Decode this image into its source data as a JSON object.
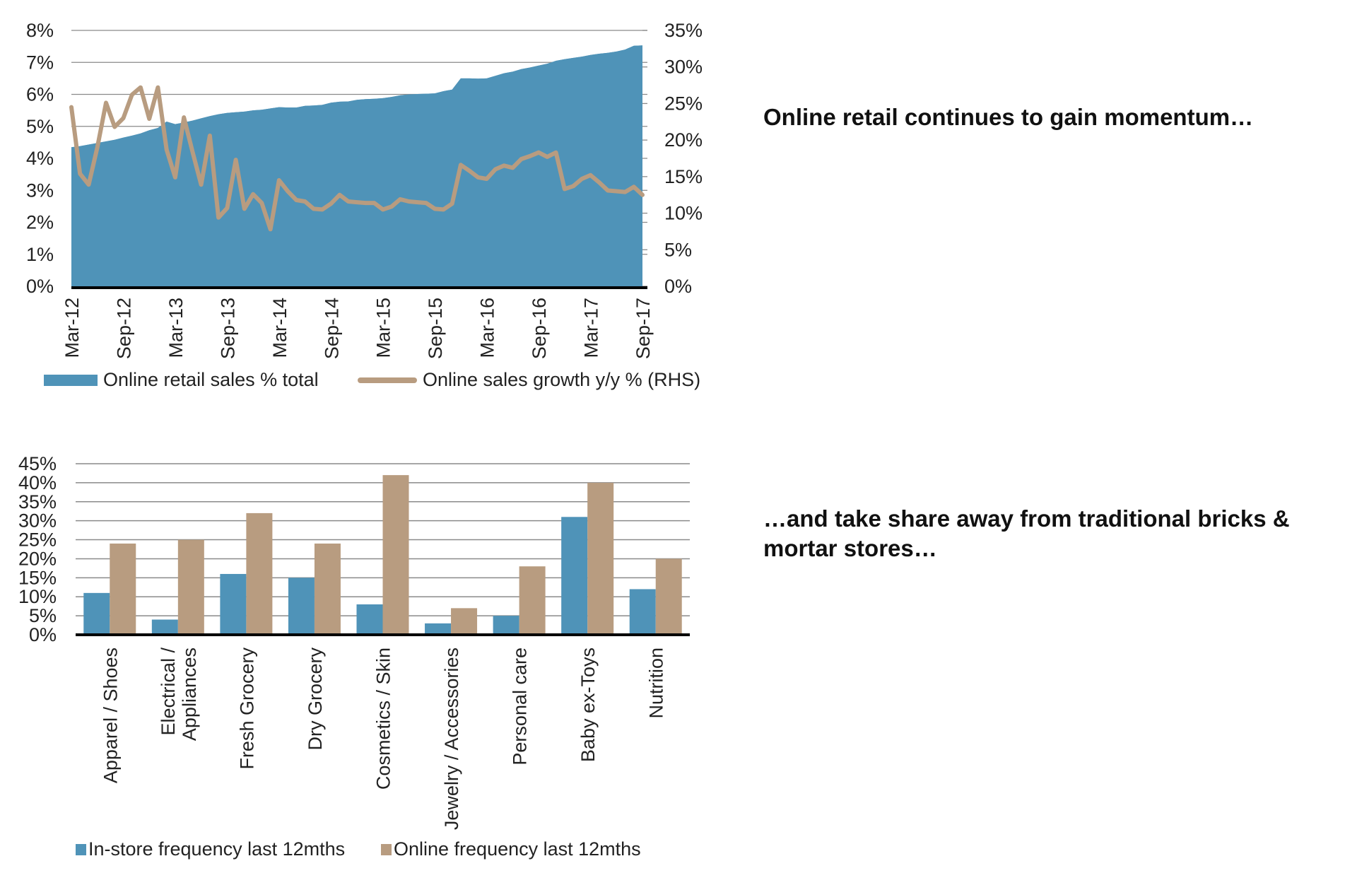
{
  "titles": {
    "top": "Online retail continues to gain momentum…",
    "bottom": "…and take share away from traditional bricks & mortar stores…"
  },
  "colors": {
    "blue": "#4f93b8",
    "tan": "#b89c80",
    "grid": "#8a8a8a",
    "axis": "#000000"
  },
  "chart_data": [
    {
      "type": "area+line",
      "x": [
        "Mar-12",
        "Apr-12",
        "May-12",
        "Jun-12",
        "Jul-12",
        "Aug-12",
        "Sep-12",
        "Oct-12",
        "Nov-12",
        "Dec-12",
        "Jan-13",
        "Feb-13",
        "Mar-13",
        "Apr-13",
        "May-13",
        "Jun-13",
        "Jul-13",
        "Aug-13",
        "Sep-13",
        "Oct-13",
        "Nov-13",
        "Dec-13",
        "Jan-14",
        "Feb-14",
        "Mar-14",
        "Apr-14",
        "May-14",
        "Jun-14",
        "Jul-14",
        "Aug-14",
        "Sep-14",
        "Oct-14",
        "Nov-14",
        "Dec-14",
        "Jan-15",
        "Feb-15",
        "Mar-15",
        "Apr-15",
        "May-15",
        "Jun-15",
        "Jul-15",
        "Aug-15",
        "Sep-15",
        "Oct-15",
        "Nov-15",
        "Dec-15",
        "Jan-16",
        "Feb-16",
        "Mar-16",
        "Apr-16",
        "May-16",
        "Jun-16",
        "Jul-16",
        "Aug-16",
        "Sep-16",
        "Oct-16",
        "Nov-16",
        "Dec-16",
        "Jan-17",
        "Feb-17",
        "Mar-17",
        "Apr-17",
        "May-17",
        "Jun-17",
        "Jul-17",
        "Aug-17",
        "Sep-17"
      ],
      "x_tick_labels": [
        "Mar-12",
        "Sep-12",
        "Mar-13",
        "Sep-13",
        "Mar-14",
        "Sep-14",
        "Mar-15",
        "Sep-15",
        "Mar-16",
        "Sep-16",
        "Mar-17",
        "Sep-17"
      ],
      "series": [
        {
          "name": "Online retail sales % total",
          "type": "area",
          "axis": "left",
          "values": [
            4.35,
            4.38,
            4.43,
            4.48,
            4.53,
            4.58,
            4.65,
            4.71,
            4.78,
            4.88,
            4.95,
            5.15,
            5.07,
            5.12,
            5.18,
            5.25,
            5.32,
            5.38,
            5.42,
            5.44,
            5.46,
            5.5,
            5.52,
            5.56,
            5.6,
            5.59,
            5.59,
            5.64,
            5.65,
            5.67,
            5.74,
            5.77,
            5.78,
            5.83,
            5.85,
            5.86,
            5.88,
            5.92,
            5.97,
            6.0,
            6.01,
            6.02,
            6.03,
            6.1,
            6.15,
            6.5,
            6.5,
            6.49,
            6.5,
            6.58,
            6.66,
            6.71,
            6.79,
            6.84,
            6.9,
            6.96,
            7.05,
            7.1,
            7.14,
            7.18,
            7.23,
            7.27,
            7.3,
            7.34,
            7.4,
            7.52,
            7.53
          ]
        },
        {
          "name": "Online sales growth y/y % (RHS)",
          "type": "line",
          "axis": "right",
          "values": [
            24.5,
            15.4,
            13.9,
            19,
            25.1,
            21.8,
            23,
            26.2,
            27.2,
            22.9,
            27.2,
            18.7,
            14.9,
            23.1,
            18.4,
            13.9,
            20.6,
            9.4,
            10.7,
            17.3,
            10.6,
            12.6,
            11.4,
            7.8,
            14.5,
            13,
            11.8,
            11.6,
            10.6,
            10.5,
            11.3,
            12.5,
            11.6,
            11.5,
            11.4,
            11.4,
            10.5,
            10.9,
            11.9,
            11.6,
            11.5,
            11.4,
            10.6,
            10.5,
            11.3,
            16.6,
            15.8,
            14.9,
            14.7,
            16,
            16.5,
            16.2,
            17.4,
            17.8,
            18.3,
            17.7,
            18.3,
            13.3,
            13.7,
            14.7,
            15.2,
            14.2,
            13.1,
            13,
            12.9,
            13.6,
            12.5
          ]
        }
      ],
      "y_left": {
        "range": [
          0,
          8
        ],
        "ticks": [
          "0%",
          "1%",
          "2%",
          "3%",
          "4%",
          "5%",
          "6%",
          "7%",
          "8%"
        ]
      },
      "y_right": {
        "range": [
          0,
          35
        ],
        "ticks": [
          "0%",
          "5%",
          "10%",
          "15%",
          "20%",
          "25%",
          "30%",
          "35%"
        ]
      },
      "grid": true,
      "legend": "bottom"
    },
    {
      "type": "bar",
      "categories": [
        "Apparel / Shoes",
        "Electrical / Appliances",
        "Fresh Grocery",
        "Dry Grocery",
        "Cosmetics / Skin",
        "Jewelry / Accessories",
        "Personal care",
        "Baby ex-Toys",
        "Nutrition"
      ],
      "category_lines": [
        [
          "Apparel / Shoes"
        ],
        [
          "Electrical /",
          "Appliances"
        ],
        [
          "Fresh Grocery"
        ],
        [
          "Dry Grocery"
        ],
        [
          "Cosmetics / Skin"
        ],
        [
          "Jewelry / Accessories"
        ],
        [
          "Personal care"
        ],
        [
          "Baby ex-Toys"
        ],
        [
          "Nutrition"
        ]
      ],
      "series": [
        {
          "name": "In-store frequency last 12mths",
          "values": [
            11,
            4,
            16,
            15,
            8,
            3,
            5,
            31,
            12
          ]
        },
        {
          "name": "Online frequency last 12mths",
          "values": [
            24,
            25,
            32,
            24,
            42,
            7,
            18,
            40,
            20
          ]
        }
      ],
      "y": {
        "range": [
          0,
          45
        ],
        "ticks": [
          "0%",
          "5%",
          "10%",
          "15%",
          "20%",
          "25%",
          "30%",
          "35%",
          "40%",
          "45%"
        ]
      },
      "grid": true,
      "legend": "bottom"
    }
  ]
}
